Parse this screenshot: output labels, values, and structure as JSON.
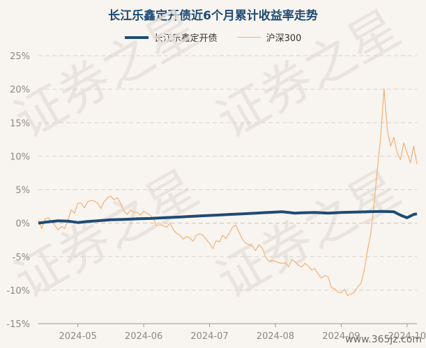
{
  "chart_data": {
    "type": "line",
    "title": "长江乐鑫定开债近6个月累计收益率走势",
    "ylim": [
      -15,
      25
    ],
    "ytick_labels": [
      "25%",
      "20%",
      "15%",
      "10%",
      "5%",
      "0%",
      "-5%",
      "-10%",
      "-15%"
    ],
    "yticks": [
      25,
      20,
      15,
      10,
      5,
      0,
      -5,
      -10,
      -15
    ],
    "xtick_labels": [
      "2024-05",
      "2024-06",
      "2024-07",
      "2024-08",
      "2024-09",
      "2024-10"
    ],
    "xlim": [
      0,
      5.75
    ],
    "xticks": [
      0.6,
      1.6,
      2.6,
      3.6,
      4.6,
      5.6
    ],
    "grid": true,
    "legend_position": "top-center",
    "series": [
      {
        "name": "长江乐鑫定开债",
        "color": "#1e4b75",
        "x": [
          0.0,
          0.15,
          0.3,
          0.45,
          0.6,
          0.75,
          0.9,
          1.1,
          1.3,
          1.5,
          1.7,
          1.9,
          2.1,
          2.3,
          2.5,
          2.7,
          2.9,
          3.1,
          3.3,
          3.5,
          3.6,
          3.7,
          3.8,
          3.9,
          4.0,
          4.2,
          4.4,
          4.6,
          4.8,
          5.0,
          5.2,
          5.4,
          5.5,
          5.6,
          5.7,
          5.75
        ],
        "y": [
          0.0,
          0.2,
          0.35,
          0.3,
          0.1,
          0.25,
          0.35,
          0.5,
          0.55,
          0.65,
          0.7,
          0.8,
          0.9,
          1.0,
          1.1,
          1.2,
          1.3,
          1.4,
          1.5,
          1.6,
          1.65,
          1.7,
          1.6,
          1.5,
          1.55,
          1.6,
          1.5,
          1.6,
          1.65,
          1.7,
          1.75,
          1.7,
          1.2,
          0.8,
          1.3,
          1.4
        ]
      },
      {
        "name": "沪深300",
        "color": "#f0b27a",
        "x": [
          0.0,
          0.05,
          0.1,
          0.15,
          0.2,
          0.25,
          0.3,
          0.35,
          0.4,
          0.45,
          0.5,
          0.55,
          0.6,
          0.65,
          0.7,
          0.75,
          0.8,
          0.85,
          0.9,
          0.95,
          1.0,
          1.05,
          1.1,
          1.15,
          1.2,
          1.25,
          1.3,
          1.35,
          1.4,
          1.45,
          1.5,
          1.55,
          1.6,
          1.65,
          1.7,
          1.75,
          1.8,
          1.85,
          1.9,
          1.95,
          2.0,
          2.05,
          2.1,
          2.15,
          2.2,
          2.25,
          2.3,
          2.35,
          2.4,
          2.45,
          2.5,
          2.55,
          2.6,
          2.65,
          2.7,
          2.75,
          2.8,
          2.85,
          2.9,
          2.95,
          3.0,
          3.05,
          3.1,
          3.15,
          3.2,
          3.25,
          3.3,
          3.35,
          3.4,
          3.45,
          3.5,
          3.55,
          3.6,
          3.65,
          3.7,
          3.75,
          3.8,
          3.85,
          3.9,
          3.95,
          4.0,
          4.05,
          4.1,
          4.15,
          4.2,
          4.25,
          4.3,
          4.35,
          4.4,
          4.45,
          4.5,
          4.55,
          4.6,
          4.65,
          4.7,
          4.75,
          4.8,
          4.85,
          4.9,
          4.95,
          5.0,
          5.05,
          5.1,
          5.15,
          5.2,
          5.25,
          5.3,
          5.35,
          5.4,
          5.45,
          5.5,
          5.55,
          5.6,
          5.65,
          5.7,
          5.75
        ],
        "y": [
          0.5,
          -0.8,
          0.6,
          0.8,
          0.2,
          -0.3,
          -1.0,
          -0.5,
          -0.8,
          0.5,
          2.0,
          1.5,
          3.0,
          3.0,
          2.3,
          3.2,
          3.4,
          3.3,
          3.0,
          2.2,
          3.2,
          3.8,
          4.0,
          3.5,
          3.8,
          3.0,
          1.8,
          1.3,
          2.0,
          1.6,
          1.6,
          1.2,
          1.8,
          1.5,
          1.2,
          0.6,
          -0.4,
          -0.2,
          -0.4,
          -0.6,
          0.0,
          -1.0,
          -1.5,
          -1.8,
          -2.4,
          -2.0,
          -2.2,
          -2.7,
          -1.8,
          -1.6,
          -1.8,
          -2.4,
          -3.0,
          -3.8,
          -2.6,
          -2.8,
          -1.8,
          -2.3,
          -1.5,
          -0.6,
          -0.3,
          -1.4,
          -2.4,
          -3.0,
          -3.2,
          -3.4,
          -4.1,
          -3.2,
          -3.7,
          -5.0,
          -5.7,
          -5.6,
          -5.7,
          -5.9,
          -6.0,
          -5.9,
          -6.5,
          -5.4,
          -5.8,
          -6.3,
          -6.5,
          -6.0,
          -6.4,
          -7.0,
          -6.8,
          -7.6,
          -8.2,
          -7.8,
          -8.0,
          -9.6,
          -9.8,
          -10.3,
          -10.4,
          -9.9,
          -10.8,
          -10.6,
          -10.3,
          -9.5,
          -9.0,
          -7.0,
          -4.0,
          -1.5,
          3.0,
          8.0,
          13.0,
          20.0,
          14.0,
          11.5,
          12.8,
          10.5,
          9.5,
          12.0,
          10.5,
          9.0,
          11.5,
          8.8
        ]
      }
    ]
  },
  "watermark_text": "证券之星",
  "watermark_url": "www.365jz.com"
}
